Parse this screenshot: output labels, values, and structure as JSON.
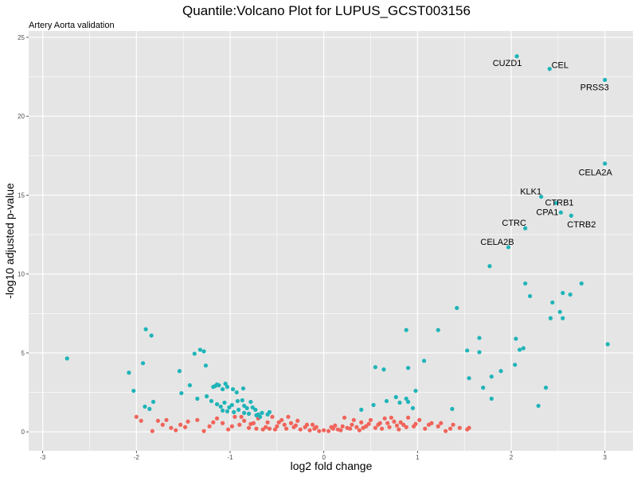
{
  "chart_data": {
    "type": "scatter",
    "title": "Quantile:Volcano Plot for LUPUS_GCST003156",
    "subtitle": "Artery Aorta validation",
    "xlabel": "log2 fold change",
    "ylabel": "-log10 adjusted p-value",
    "xlim": [
      -3.15,
      3.3
    ],
    "ylim": [
      -1.2,
      25.4
    ],
    "x_ticks": [
      -3,
      -2,
      -1,
      0,
      1,
      2,
      3
    ],
    "y_ticks": [
      0,
      5,
      10,
      15,
      20,
      25
    ],
    "grid": true,
    "legend": "none",
    "colors": {
      "significant": "#1fb4b8",
      "not_significant": "#f0645a",
      "panel": "#e5e5e5",
      "grid": "#ffffff"
    },
    "series": [
      {
        "color": "#1fb4b8",
        "points": [
          [
            2.06,
            23.8
          ],
          [
            2.41,
            23.0
          ],
          [
            3.0,
            22.3
          ],
          [
            3.0,
            17.0
          ],
          [
            2.32,
            14.9
          ],
          [
            2.48,
            14.5
          ],
          [
            2.53,
            13.9
          ],
          [
            2.64,
            13.7
          ],
          [
            2.15,
            12.9
          ],
          [
            1.97,
            11.7
          ],
          [
            1.77,
            10.5
          ],
          [
            2.15,
            9.4
          ],
          [
            2.2,
            8.6
          ],
          [
            2.44,
            8.2
          ],
          [
            2.75,
            9.4
          ],
          [
            2.55,
            8.8
          ],
          [
            2.63,
            8.7
          ],
          [
            2.52,
            7.6
          ],
          [
            2.42,
            7.2
          ],
          [
            2.55,
            7.2
          ],
          [
            1.42,
            7.85
          ],
          [
            1.22,
            6.45
          ],
          [
            0.88,
            6.45
          ],
          [
            1.66,
            5.95
          ],
          [
            2.05,
            5.9
          ],
          [
            2.13,
            5.3
          ],
          [
            2.09,
            5.2
          ],
          [
            1.53,
            5.15
          ],
          [
            1.66,
            5.05
          ],
          [
            3.03,
            5.55
          ],
          [
            1.07,
            4.5
          ],
          [
            2.04,
            4.25
          ],
          [
            1.55,
            3.4
          ],
          [
            1.79,
            3.5
          ],
          [
            1.89,
            3.85
          ],
          [
            0.9,
            4.05
          ],
          [
            0.55,
            4.1
          ],
          [
            0.64,
            3.95
          ],
          [
            1.7,
            2.8
          ],
          [
            1.79,
            2.1
          ],
          [
            2.37,
            2.8
          ],
          [
            2.29,
            1.65
          ],
          [
            1.37,
            1.45
          ],
          [
            0.98,
            2.6
          ],
          [
            0.88,
            2.1
          ],
          [
            0.9,
            1.9
          ],
          [
            0.77,
            2.2
          ],
          [
            0.81,
            1.85
          ],
          [
            0.67,
            1.95
          ],
          [
            0.53,
            1.7
          ],
          [
            0.4,
            1.4
          ],
          [
            0.95,
            1.5
          ],
          [
            -2.74,
            4.65
          ],
          [
            -2.08,
            3.75
          ],
          [
            -2.03,
            2.6
          ],
          [
            -1.93,
            4.35
          ],
          [
            -1.9,
            6.5
          ],
          [
            -1.84,
            6.1
          ],
          [
            -1.91,
            1.6
          ],
          [
            -1.86,
            1.45
          ],
          [
            -1.82,
            1.9
          ],
          [
            -1.54,
            3.85
          ],
          [
            -1.52,
            2.45
          ],
          [
            -1.43,
            2.95
          ],
          [
            -1.38,
            4.95
          ],
          [
            -1.32,
            5.2
          ],
          [
            -1.28,
            5.1
          ],
          [
            -1.35,
            2.1
          ],
          [
            -1.26,
            4.2
          ],
          [
            -1.25,
            2.25
          ],
          [
            -1.18,
            2.85
          ],
          [
            -1.16,
            2.9
          ],
          [
            -1.14,
            3.0
          ],
          [
            -1.12,
            2.95
          ],
          [
            -1.08,
            2.7
          ],
          [
            -1.05,
            3.05
          ],
          [
            -1.03,
            2.85
          ],
          [
            -0.97,
            2.7
          ],
          [
            -0.93,
            2.5
          ],
          [
            -0.86,
            2.75
          ],
          [
            -1.2,
            1.95
          ],
          [
            -1.14,
            1.75
          ],
          [
            -1.1,
            1.6
          ],
          [
            -1.06,
            1.85
          ],
          [
            -1.01,
            1.55
          ],
          [
            -0.98,
            1.7
          ],
          [
            -0.92,
            1.95
          ],
          [
            -0.87,
            2.0
          ],
          [
            -0.85,
            1.65
          ],
          [
            -0.82,
            1.5
          ],
          [
            -0.78,
            1.9
          ],
          [
            -0.76,
            1.55
          ],
          [
            -1.08,
            1.35
          ],
          [
            -1.03,
            1.3
          ],
          [
            -0.96,
            1.25
          ],
          [
            -0.91,
            1.4
          ],
          [
            -0.85,
            1.2
          ],
          [
            -0.8,
            1.15
          ],
          [
            -0.73,
            1.4
          ],
          [
            -0.7,
            1.1
          ],
          [
            -0.66,
            1.2
          ],
          [
            -0.6,
            1.1
          ],
          [
            -0.58,
            1.25
          ],
          [
            -0.68,
            0.95
          ],
          [
            -0.72,
            1.05
          ]
        ]
      },
      {
        "color": "#f0645a",
        "points": [
          [
            -2.0,
            0.95
          ],
          [
            -1.83,
            0.05
          ],
          [
            -1.72,
            0.45
          ],
          [
            -1.68,
            0.75
          ],
          [
            -1.63,
            0.25
          ],
          [
            -1.53,
            0.45
          ],
          [
            -1.45,
            0.65
          ],
          [
            -1.35,
            0.75
          ],
          [
            -1.28,
            0.05
          ],
          [
            -1.22,
            0.35
          ],
          [
            -1.14,
            0.85
          ],
          [
            -1.08,
            0.55
          ],
          [
            -1.02,
            0.15
          ],
          [
            -0.95,
            0.95
          ],
          [
            -0.9,
            0.45
          ],
          [
            -0.85,
            0.7
          ],
          [
            -0.8,
            0.25
          ],
          [
            -0.75,
            0.55
          ],
          [
            -0.7,
            0.85
          ],
          [
            -0.65,
            0.15
          ],
          [
            -0.6,
            0.6
          ],
          [
            -0.55,
            0.95
          ],
          [
            -0.5,
            0.35
          ],
          [
            -0.45,
            0.75
          ],
          [
            -0.4,
            0.2
          ],
          [
            -0.35,
            0.55
          ],
          [
            -0.3,
            0.4
          ],
          [
            -0.25,
            0.15
          ],
          [
            -0.2,
            0.3
          ],
          [
            -0.15,
            0.1
          ],
          [
            -0.1,
            0.2
          ],
          [
            -0.05,
            0.05
          ],
          [
            0.0,
            0.1
          ],
          [
            0.05,
            0.05
          ],
          [
            0.1,
            0.2
          ],
          [
            0.15,
            0.15
          ],
          [
            0.2,
            0.35
          ],
          [
            0.25,
            0.25
          ],
          [
            0.3,
            0.45
          ],
          [
            0.35,
            0.3
          ],
          [
            0.4,
            0.6
          ],
          [
            0.45,
            0.35
          ],
          [
            0.5,
            0.75
          ],
          [
            0.55,
            0.25
          ],
          [
            0.6,
            0.55
          ],
          [
            0.65,
            0.85
          ],
          [
            0.7,
            0.3
          ],
          [
            0.75,
            0.65
          ],
          [
            0.8,
            0.15
          ],
          [
            0.85,
            0.45
          ],
          [
            0.9,
            0.9
          ],
          [
            0.96,
            0.35
          ],
          [
            1.02,
            0.75
          ],
          [
            1.08,
            0.2
          ],
          [
            1.15,
            0.55
          ],
          [
            1.22,
            0.35
          ],
          [
            1.3,
            0.05
          ],
          [
            1.38,
            0.45
          ],
          [
            1.45,
            0.25
          ],
          [
            1.53,
            0.15
          ],
          [
            1.55,
            0.25
          ],
          [
            -1.95,
            0.7
          ],
          [
            -1.77,
            0.7
          ],
          [
            -1.58,
            0.1
          ],
          [
            -1.48,
            0.3
          ],
          [
            -1.18,
            0.6
          ],
          [
            -0.98,
            0.35
          ],
          [
            -0.88,
            0.95
          ],
          [
            -0.78,
            0.5
          ],
          [
            -0.62,
            0.3
          ],
          [
            -0.48,
            0.6
          ],
          [
            -0.32,
            0.3
          ],
          [
            -0.18,
            0.45
          ],
          [
            -0.08,
            0.3
          ],
          [
            0.08,
            0.3
          ],
          [
            0.18,
            0.1
          ],
          [
            0.28,
            0.2
          ],
          [
            0.38,
            0.1
          ],
          [
            0.48,
            0.5
          ],
          [
            0.58,
            0.45
          ],
          [
            0.68,
            0.55
          ],
          [
            0.78,
            0.4
          ],
          [
            0.88,
            0.3
          ],
          [
            0.98,
            0.5
          ],
          [
            1.12,
            0.45
          ],
          [
            1.25,
            0.55
          ],
          [
            1.35,
            0.2
          ],
          [
            0.22,
            0.9
          ],
          [
            -0.38,
            0.95
          ],
          [
            -0.58,
            0.2
          ],
          [
            -0.42,
            0.45
          ],
          [
            -0.28,
            0.7
          ],
          [
            0.32,
            0.75
          ],
          [
            0.42,
            0.25
          ],
          [
            0.62,
            0.2
          ],
          [
            0.72,
            0.9
          ],
          [
            0.82,
            0.6
          ],
          [
            -0.72,
            0.2
          ],
          [
            -0.52,
            0.15
          ],
          [
            0.12,
            0.4
          ],
          [
            -0.12,
            0.45
          ]
        ]
      }
    ],
    "annotations": [
      {
        "text": "CUZD1",
        "x": 2.06,
        "y": 23.8
      },
      {
        "text": "CEL",
        "x": 2.41,
        "y": 23.0
      },
      {
        "text": "PRSS3",
        "x": 3.0,
        "y": 22.3
      },
      {
        "text": "CELA2A",
        "x": 3.0,
        "y": 17.0
      },
      {
        "text": "KLK1",
        "x": 2.32,
        "y": 14.9
      },
      {
        "text": "CTRB1",
        "x": 2.48,
        "y": 14.5
      },
      {
        "text": "CPA1",
        "x": 2.53,
        "y": 13.9
      },
      {
        "text": "CTRB2",
        "x": 2.64,
        "y": 13.7
      },
      {
        "text": "CTRC",
        "x": 2.15,
        "y": 12.9
      },
      {
        "text": "CELA2B",
        "x": 1.97,
        "y": 11.7
      }
    ]
  }
}
